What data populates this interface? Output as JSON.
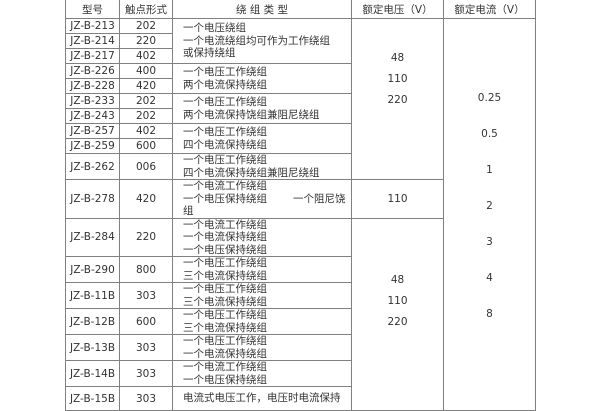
{
  "headers": [
    "型号",
    "触点形式",
    "绕 组 类 型",
    "额定电压（V）",
    "额定电流（V）"
  ],
  "rows": [
    {
      "model": "JZ-B-213",
      "contact": "202"
    },
    {
      "model": "JZ-B-214",
      "contact": "220"
    },
    {
      "model": "JZ-B-217",
      "contact": "402"
    },
    {
      "model": "JZ-B-226",
      "contact": "400"
    },
    {
      "model": "JZ-B-228",
      "contact": "420"
    },
    {
      "model": "JZ-B-233",
      "contact": "202"
    },
    {
      "model": "JZ-B-243",
      "contact": "202"
    },
    {
      "model": "JZ-B-257",
      "contact": "402"
    },
    {
      "model": "JZ-B-259",
      "contact": "600"
    },
    {
      "model": "JZ-B-262",
      "contact": "006"
    },
    {
      "model": "JZ-B-278",
      "contact": "420"
    },
    {
      "model": "JZ-B-284",
      "contact": "220"
    },
    {
      "model": "JZ-B-290",
      "contact": "800"
    },
    {
      "model": "JZ-B-11B",
      "contact": "303"
    },
    {
      "model": "JZ-B-12B",
      "contact": "600"
    },
    {
      "model": "JZ-B-13B",
      "contact": "303"
    },
    {
      "model": "JZ-B-14B",
      "contact": "303"
    },
    {
      "model": "JZ-B-15B",
      "contact": "303"
    }
  ],
  "windings": [
    [
      "一个电压绕组",
      "一个电流绕组均可作为工作绕组",
      "或保持绕组"
    ],
    [
      "一个电压工作绕组",
      "两个电流保持绕组"
    ],
    [
      "一个电压工作绕组",
      "两个电流保持饶组兼阻尼绕组"
    ],
    [
      "一个电压工作绕组",
      "四个电流保持绕组"
    ],
    [
      "一个电压工作绕组",
      "四个电流保持绕组兼阻尼绕组"
    ],
    [
      "一个电流工作绕组",
      "一个电压保持绕组",
      "一个阻尼饶组"
    ],
    [
      "一个电流工作绕组",
      "一个电流保持绕组",
      "一个电压保持绕组"
    ],
    [
      "一个电压工作绕组",
      "三个电流保持绕组"
    ],
    [
      "一个电压工作绕组",
      "三个电流保持绕组"
    ],
    [
      "一个电压工作绕组",
      "三个电流保持绕组"
    ],
    [
      "一个电压工作绕组",
      "一个电流保持绕组"
    ],
    [
      "一个电流工作绕组",
      "一个电压保持绕组"
    ],
    [
      "电流式电压工作，电压时电流保持"
    ]
  ],
  "voltage_groups": [
    [
      "48",
      "110",
      "220"
    ],
    [
      "110"
    ],
    [
      "48",
      "110",
      "220"
    ]
  ],
  "currents": [
    "0.25",
    "0.5",
    "1",
    "2",
    "3",
    "4",
    "8"
  ]
}
